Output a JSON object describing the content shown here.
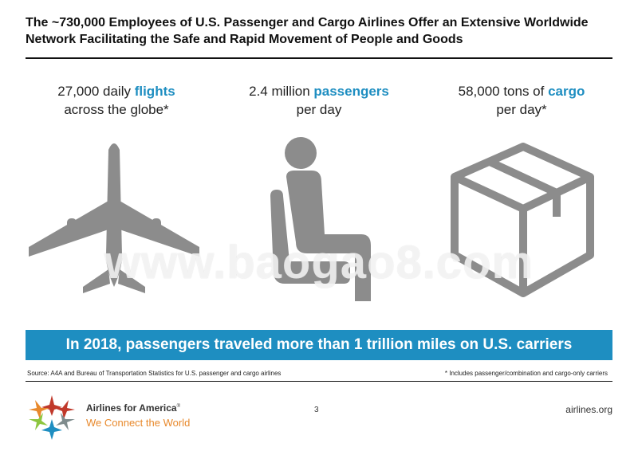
{
  "header": {
    "title": "The ~730,000 Employees of U.S. Passenger and Cargo Airlines Offer an Extensive Worldwide Network Facilitating the Safe and Rapid Movement of People and Goods"
  },
  "stats": [
    {
      "pre": "27,000 daily ",
      "highlight": "flights",
      "post_line": "across the globe*",
      "icon": "airplane-icon"
    },
    {
      "pre": "2.4 million ",
      "highlight": "passengers",
      "post_line": "per day",
      "icon": "seated-person-icon"
    },
    {
      "pre": "58,000 tons of ",
      "highlight": "cargo",
      "post_line": "per day*",
      "icon": "cargo-box-icon"
    }
  ],
  "watermark": "www.baogao8.com",
  "banner": "In 2018, passengers traveled more than 1 trillion miles on U.S. carriers",
  "footer": {
    "source": "Source: A4A and Bureau of Transportation Statistics for U.S. passenger and cargo airlines",
    "footnote": "* Includes passenger/combination and cargo-only carriers",
    "org_name": "Airlines for America",
    "registered_mark": "®",
    "tagline": "We Connect the World",
    "page_number": "3",
    "site": "airlines.org"
  },
  "colors": {
    "accent": "#1e8ec1",
    "icon_gray": "#8c8c8c",
    "tagline_orange": "#e8892c"
  }
}
